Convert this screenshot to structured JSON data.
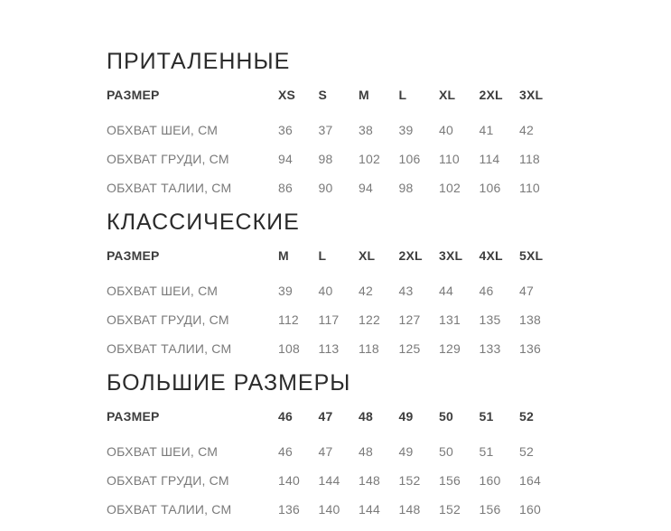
{
  "colors": {
    "background": "#ffffff",
    "heading": "#2b2b2b",
    "header_row": "#3d3d3d",
    "data_row": "#7a7a7a"
  },
  "sections": [
    {
      "title": "ПРИТАЛЕННЫЕ",
      "header_label": "РАЗМЕР",
      "sizes": [
        "XS",
        "S",
        "M",
        "L",
        "XL",
        "2XL",
        "3XL"
      ],
      "rows": [
        {
          "label": "ОБХВАТ ШЕИ, СМ",
          "values": [
            "36",
            "37",
            "38",
            "39",
            "40",
            "41",
            "42"
          ]
        },
        {
          "label": "ОБХВАТ ГРУДИ, СМ",
          "values": [
            "94",
            "98",
            "102",
            "106",
            "110",
            "114",
            "118"
          ]
        },
        {
          "label": "ОБХВАТ ТАЛИИ, СМ",
          "values": [
            "86",
            "90",
            "94",
            "98",
            "102",
            "106",
            "110"
          ]
        }
      ]
    },
    {
      "title": "КЛАССИЧЕСКИЕ",
      "header_label": "РАЗМЕР",
      "sizes": [
        "M",
        "L",
        "XL",
        "2XL",
        "3XL",
        "4XL",
        "5XL"
      ],
      "rows": [
        {
          "label": "ОБХВАТ ШЕИ, СМ",
          "values": [
            "39",
            "40",
            "42",
            "43",
            "44",
            "46",
            "47"
          ]
        },
        {
          "label": "ОБХВАТ ГРУДИ, СМ",
          "values": [
            "112",
            "117",
            "122",
            "127",
            "131",
            "135",
            "138"
          ]
        },
        {
          "label": "ОБХВАТ ТАЛИИ, СМ",
          "values": [
            "108",
            "113",
            "118",
            "125",
            "129",
            "133",
            "136"
          ]
        }
      ]
    },
    {
      "title": "БОЛЬШИЕ РАЗМЕРЫ",
      "header_label": "РАЗМЕР",
      "sizes": [
        "46",
        "47",
        "48",
        "49",
        "50",
        "51",
        "52"
      ],
      "rows": [
        {
          "label": "ОБХВАТ ШЕИ, СМ",
          "values": [
            "46",
            "47",
            "48",
            "49",
            "50",
            "51",
            "52"
          ]
        },
        {
          "label": "ОБХВАТ ГРУДИ, СМ",
          "values": [
            "140",
            "144",
            "148",
            "152",
            "156",
            "160",
            "164"
          ]
        },
        {
          "label": "ОБХВАТ ТАЛИИ, СМ",
          "values": [
            "136",
            "140",
            "144",
            "148",
            "152",
            "156",
            "160"
          ]
        }
      ]
    }
  ],
  "chart_data": [
    {
      "type": "table",
      "title": "ПРИТАЛЕННЫЕ",
      "columns": [
        "РАЗМЕР",
        "XS",
        "S",
        "M",
        "L",
        "XL",
        "2XL",
        "3XL"
      ],
      "rows": [
        [
          "ОБХВАТ ШЕИ, СМ",
          36,
          37,
          38,
          39,
          40,
          41,
          42
        ],
        [
          "ОБХВАТ ГРУДИ, СМ",
          94,
          98,
          102,
          106,
          110,
          114,
          118
        ],
        [
          "ОБХВАТ ТАЛИИ, СМ",
          86,
          90,
          94,
          98,
          102,
          106,
          110
        ]
      ]
    },
    {
      "type": "table",
      "title": "КЛАССИЧЕСКИЕ",
      "columns": [
        "РАЗМЕР",
        "M",
        "L",
        "XL",
        "2XL",
        "3XL",
        "4XL",
        "5XL"
      ],
      "rows": [
        [
          "ОБХВАТ ШЕИ, СМ",
          39,
          40,
          42,
          43,
          44,
          46,
          47
        ],
        [
          "ОБХВАТ ГРУДИ, СМ",
          112,
          117,
          122,
          127,
          131,
          135,
          138
        ],
        [
          "ОБХВАТ ТАЛИИ, СМ",
          108,
          113,
          118,
          125,
          129,
          133,
          136
        ]
      ]
    },
    {
      "type": "table",
      "title": "БОЛЬШИЕ РАЗМЕРЫ",
      "columns": [
        "РАЗМЕР",
        "46",
        "47",
        "48",
        "49",
        "50",
        "51",
        "52"
      ],
      "rows": [
        [
          "ОБХВАТ ШЕИ, СМ",
          46,
          47,
          48,
          49,
          50,
          51,
          52
        ],
        [
          "ОБХВАТ ГРУДИ, СМ",
          140,
          144,
          148,
          152,
          156,
          160,
          164
        ],
        [
          "ОБХВАТ ТАЛИИ, СМ",
          136,
          140,
          144,
          148,
          152,
          156,
          160
        ]
      ]
    }
  ]
}
